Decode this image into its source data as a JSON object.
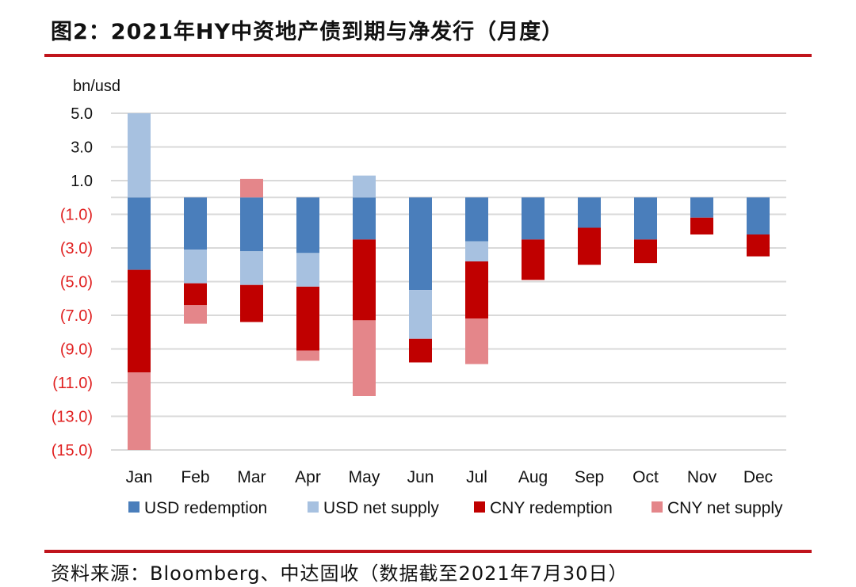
{
  "title": "图2：2021年HY中资地产债到期与净发行（月度）",
  "source": "资料来源：Bloomberg、中达固收（数据截至2021年7月30日）",
  "colors": {
    "usd_redemption": "#4a7ebb",
    "usd_net_supply": "#a7c1e0",
    "cny_redemption": "#c00000",
    "cny_net_supply": "#e4868a",
    "negative_tick": "#e02020",
    "positive_tick": "#111111",
    "grid": "#d9d9d9",
    "rule": "#c0141c"
  },
  "chart_data": {
    "type": "bar",
    "stacked": true,
    "ylabel": "bn/usd",
    "ylim": [
      -15,
      5
    ],
    "yticks": [
      5,
      3,
      1,
      -1,
      -3,
      -5,
      -7,
      -9,
      -11,
      -13,
      -15
    ],
    "ytick_labels": [
      "5.0",
      "3.0",
      "1.0",
      "(1.0)",
      "(3.0)",
      "(5.0)",
      "(7.0)",
      "(9.0)",
      "(11.0)",
      "(13.0)",
      "(15.0)"
    ],
    "grid": true,
    "legend_position": "bottom",
    "categories": [
      "Jan",
      "Feb",
      "Mar",
      "Apr",
      "May",
      "Jun",
      "Jul",
      "Aug",
      "Sep",
      "Oct",
      "Nov",
      "Dec"
    ],
    "series": [
      {
        "name": "USD redemption",
        "values": [
          -4.3,
          -3.1,
          -3.2,
          -3.3,
          -2.5,
          -5.5,
          -2.6,
          -2.5,
          -1.8,
          -2.5,
          -1.2,
          -2.2
        ]
      },
      {
        "name": "USD net supply",
        "values": [
          5.0,
          -2.0,
          -2.0,
          -2.0,
          1.3,
          -2.9,
          -1.2,
          0,
          0,
          0,
          0,
          0
        ]
      },
      {
        "name": "CNY redemption",
        "values": [
          -6.1,
          -1.3,
          -2.2,
          -3.8,
          -4.8,
          -1.4,
          -3.4,
          -2.4,
          -2.2,
          -1.4,
          -1.0,
          -1.3
        ]
      },
      {
        "name": "CNY net supply",
        "values": [
          -4.6,
          -1.1,
          1.1,
          -0.6,
          -4.5,
          0,
          -2.7,
          0,
          0,
          0,
          0,
          0
        ]
      }
    ]
  }
}
